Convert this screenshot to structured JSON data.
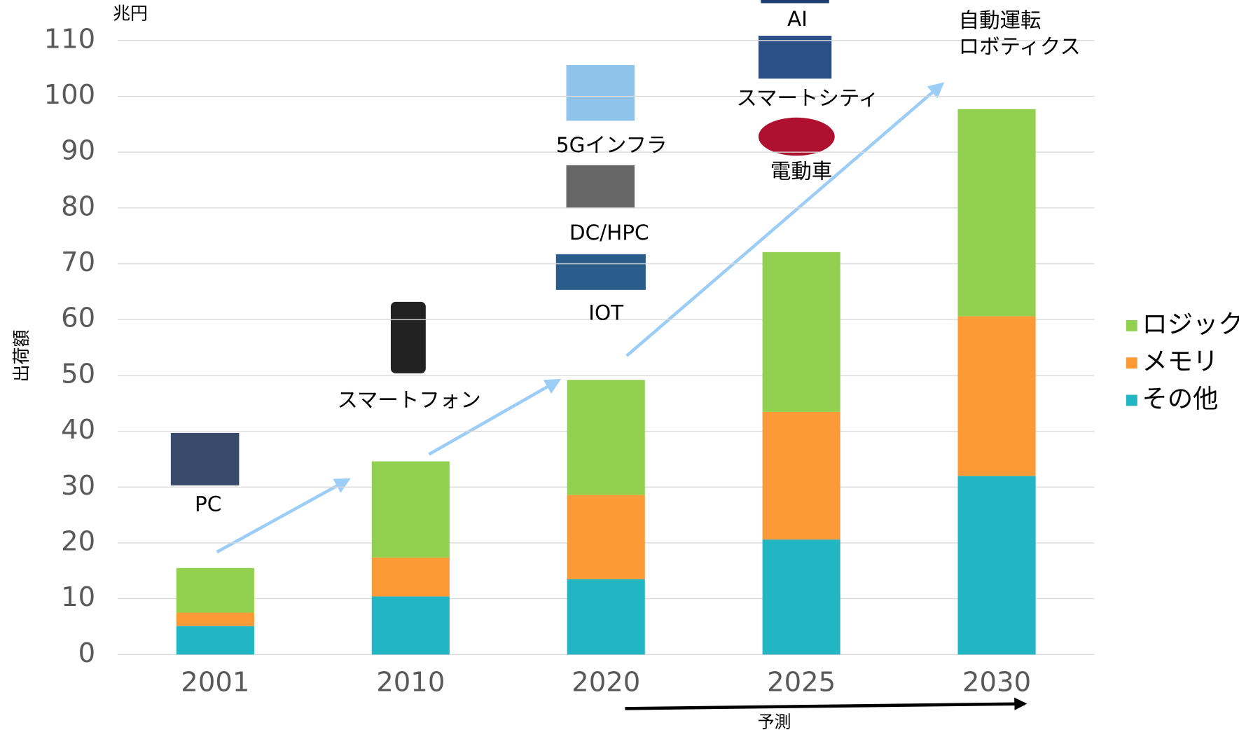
{
  "chart_data": {
    "type": "bar",
    "stacked": true,
    "unit_label": "兆円",
    "y_label": "出荷額",
    "categories": [
      "2001",
      "2010",
      "2020",
      "2025",
      "2030"
    ],
    "series": [
      {
        "name": "その他",
        "color": "#22b5c4",
        "values": [
          5.1,
          10.4,
          13.5,
          20.6,
          32.0
        ]
      },
      {
        "name": "メモリ",
        "color": "#fd9a38",
        "values": [
          2.4,
          7.0,
          15.1,
          22.9,
          28.6
        ]
      },
      {
        "name": "ロジック",
        "color": "#92d050",
        "values": [
          8.0,
          17.2,
          20.6,
          28.6,
          37.1
        ]
      }
    ],
    "ylim": [
      0,
      110
    ],
    "yticks": [
      0,
      10,
      20,
      30,
      40,
      50,
      60,
      70,
      80,
      90,
      100,
      110
    ],
    "grid": true,
    "annotations": [
      "PC",
      "スマートフォン",
      "IOT",
      "DC/HPC",
      "5Gインフラ",
      "電動車",
      "スマートシティ",
      "AI",
      "自動運転",
      "ロボティクス"
    ],
    "forecast_label": "予測"
  }
}
